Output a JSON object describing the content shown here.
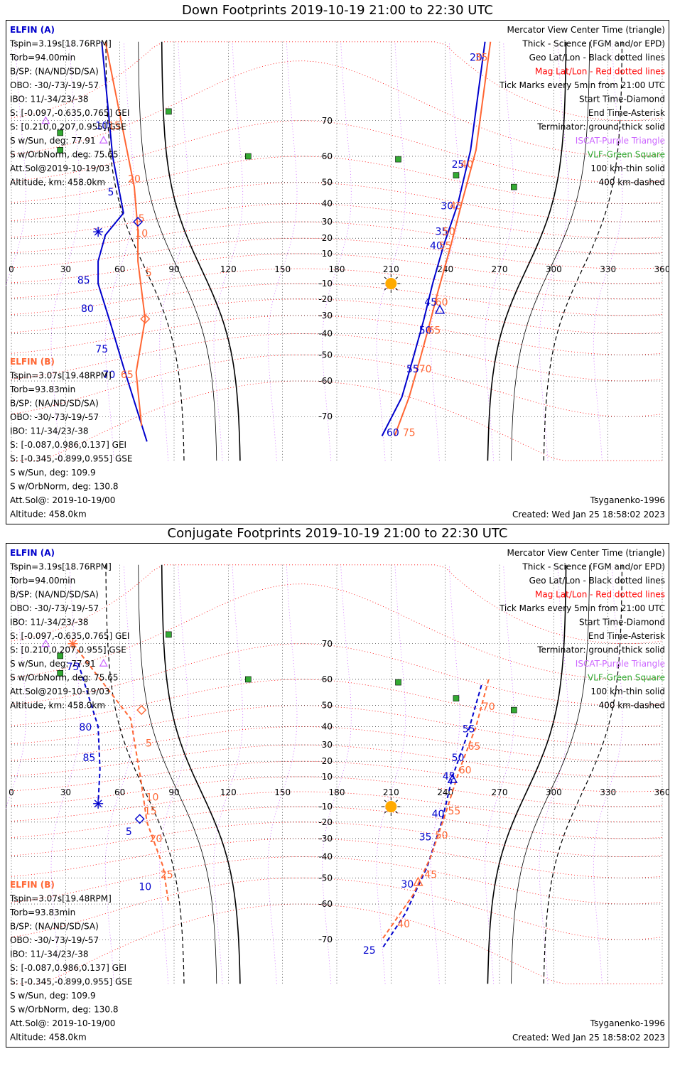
{
  "panels": [
    {
      "title": "Down Footprints 2019-10-19 21:00 to 22:30 UTC",
      "elfin_a": {
        "name": "ELFIN (A)",
        "lines": [
          "Tspin=3.19s[18.76RPM]",
          "Torb=94.00min",
          "B/SP: (NA/ND/SD/SA)",
          "OBO: -30/-73/-19/-57",
          "IBO: 11/-34/23/-38",
          "S: [-0.097,-0.635,0.765] GEI",
          "S: [0.210,0.207,0.955] GSE",
          "S w/Sun, deg: 77.91",
          "S w/OrbNorm, deg: 75.65",
          "Att.Sol@2019-10-19/03",
          "Altitude, km: 458.0km"
        ]
      },
      "elfin_b": {
        "name": "ELFIN (B)",
        "lines": [
          "Tspin=3.07s[19.48RPM]",
          "Torb=93.83min",
          "B/SP: (NA/ND/SD/SA)",
          "OBO: -30/-73/-19/-57",
          "IBO: 11/-34/23/-38",
          "S: [-0.087,0.986,0.137] GEI",
          "S: [-0.345,-0.899,0.955] GSE",
          "S w/Sun, deg: 109.9",
          "S w/OrbNorm, deg: 130.8",
          "Att.Sol@: 2019-10-19/00",
          "Altitude: 458.0km"
        ]
      },
      "created": "Created: Wed Jan 25 18:58:02 2023"
    },
    {
      "title": "Conjugate Footprints 2019-10-19 21:00 to 22:30 UTC",
      "elfin_a": {
        "name": "ELFIN (A)",
        "lines": [
          "Tspin=3.19s[18.76RPM]",
          "Torb=94.00min",
          "B/SP: (NA/ND/SD/SA)",
          "OBO: -30/-73/-19/-57",
          "IBO: 11/-34/23/-38",
          "S: [-0.097,-0.635,0.765] GEI",
          "S: [0.210,0.207,0.955] GSE",
          "S w/Sun, deg: 77.91",
          "S w/OrbNorm, deg: 75.65",
          "Att.Sol@2019-10-19/03",
          "Altitude, km: 458.0km"
        ]
      },
      "elfin_b": {
        "name": "ELFIN (B)",
        "lines": [
          "Tspin=3.07s[19.48RPM]",
          "Torb=93.83min",
          "B/SP: (NA/ND/SD/SA)",
          "OBO: -30/-73/-19/-57",
          "IBO: 11/-34/23/-38",
          "S: [-0.087,0.986,0.137] GEI",
          "S: [-0.345,-0.899,0.955] GSE",
          "S w/Sun, deg: 109.9",
          "S w/OrbNorm, deg: 130.8",
          "Att.Sol@: 2019-10-19/00",
          "Altitude: 458.0km"
        ]
      },
      "created": "Created: Wed Jan 25 18:58:02 2023"
    }
  ],
  "legend": [
    {
      "text": "Mercator View Center Time (triangle)",
      "color": "#000000"
    },
    {
      "text": "Thick - Science (FGM and/or EPD)",
      "color": "#000000"
    },
    {
      "text": "Geo Lat/Lon - Black dotted lines",
      "color": "#000000"
    },
    {
      "text": "Mag Lat/Lon - Red dotted lines",
      "color": "#ff0000"
    },
    {
      "text": "Tick Marks every 5min from 21:00 UTC",
      "color": "#000000"
    },
    {
      "text": "Start Time-Diamond",
      "color": "#000000"
    },
    {
      "text": "End Time-Asterisk",
      "color": "#000000"
    },
    {
      "text": "Terminator: ground-thick solid",
      "color": "#000000"
    },
    {
      "text": "ISCAT-Purple Triangle",
      "color": "#cc66ff"
    },
    {
      "text": "VLF-Green Square",
      "color": "#33aa33"
    },
    {
      "text": "100 km-thin solid",
      "color": "#000000"
    },
    {
      "text": "400 km-dashed",
      "color": "#000000"
    }
  ],
  "model": "Tsyganenko-1996",
  "colors": {
    "elfin_a": "#0000cc",
    "elfin_b": "#ff6633",
    "mag_grid": "#ff0000",
    "iscat": "#cc66ff",
    "vlf": "#33aa33",
    "sun": "#ffaa00"
  },
  "chart_data": [
    {
      "type": "scatter",
      "title": "Down Footprints 2019-10-19 21:00 to 22:30 UTC",
      "x_ticks": [
        0,
        30,
        60,
        90,
        120,
        150,
        180,
        210,
        240,
        270,
        300,
        330,
        360
      ],
      "y_ticks": [
        70,
        60,
        50,
        40,
        30,
        20,
        10,
        -10,
        -20,
        -30,
        -40,
        -50,
        -60,
        -70
      ],
      "xlim": [
        0,
        360
      ],
      "ylim": [
        -78,
        82
      ],
      "sun": [
        210,
        -10
      ],
      "vlf_stations": [
        [
          87,
          72
        ],
        [
          27,
          67
        ],
        [
          27,
          62
        ],
        [
          131,
          60
        ],
        [
          214,
          59
        ],
        [
          246,
          53
        ],
        [
          278,
          48
        ]
      ],
      "iscat": [
        [
          19,
          70
        ],
        [
          51,
          65
        ]
      ],
      "elfin_a": {
        "track_west": [
          [
            50,
            82
          ],
          [
            56,
            60
          ],
          [
            62,
            35
          ],
          [
            52,
            22
          ],
          [
            48,
            5
          ],
          [
            48,
            -10
          ],
          [
            55,
            -35
          ],
          [
            62,
            -55
          ],
          [
            75,
            -75
          ]
        ],
        "track_east": [
          [
            262,
            82
          ],
          [
            254,
            62
          ],
          [
            247,
            40
          ],
          [
            239,
            15
          ],
          [
            233,
            -10
          ],
          [
            228,
            -33
          ],
          [
            222,
            -52
          ],
          [
            216,
            -65
          ],
          [
            205,
            -74
          ]
        ],
        "ticks": [
          {
            "label": "10",
            "lon": 50,
            "lat": 68
          },
          {
            "label": "5",
            "lon": 55,
            "lat": 44
          },
          {
            "label": "85",
            "lon": 40,
            "lat": -10
          },
          {
            "label": "80",
            "lon": 42,
            "lat": -28
          },
          {
            "label": "75",
            "lon": 50,
            "lat": -49
          },
          {
            "label": "70",
            "lon": 54,
            "lat": -59
          },
          {
            "label": "20",
            "lon": 257,
            "lat": 80
          },
          {
            "label": "25",
            "lon": 247,
            "lat": 56
          },
          {
            "label": "30",
            "lon": 241,
            "lat": 37
          },
          {
            "label": "35",
            "lon": 238,
            "lat": 22
          },
          {
            "label": "40",
            "lon": 235,
            "lat": 13
          },
          {
            "label": "45",
            "lon": 232,
            "lat": -24
          },
          {
            "label": "50",
            "lon": 229,
            "lat": -40
          },
          {
            "label": "55",
            "lon": 222,
            "lat": -57
          },
          {
            "label": "60",
            "lon": 211,
            "lat": -74
          }
        ],
        "start": [
          70,
          30
        ],
        "end": [
          48,
          24
        ],
        "center": [
          237,
          -27
        ]
      },
      "elfin_b": {
        "track_west": [
          [
            52,
            82
          ],
          [
            68,
            48
          ],
          [
            70,
            25
          ],
          [
            70,
            5
          ],
          [
            74,
            -32
          ],
          [
            69,
            -57
          ],
          [
            72,
            -72
          ]
        ],
        "track_east": [
          [
            265,
            82
          ],
          [
            257,
            62
          ],
          [
            249,
            40
          ],
          [
            243,
            15
          ],
          [
            236,
            -15
          ],
          [
            231,
            -36
          ],
          [
            226,
            -52
          ],
          [
            220,
            -65
          ],
          [
            212,
            -74
          ]
        ],
        "ticks": [
          {
            "label": "15",
            "lon": 57,
            "lat": 68
          },
          {
            "label": "20",
            "lon": 68,
            "lat": 50
          },
          {
            "label": "5",
            "lon": 72,
            "lat": 30
          },
          {
            "label": "10",
            "lon": 72,
            "lat": 21
          },
          {
            "label": "5",
            "lon": 76,
            "lat": -5
          },
          {
            "label": "65",
            "lon": 64,
            "lat": -59
          },
          {
            "label": "35",
            "lon": 260,
            "lat": 80
          },
          {
            "label": "40",
            "lon": 252,
            "lat": 56
          },
          {
            "label": "45",
            "lon": 246,
            "lat": 37
          },
          {
            "label": "50",
            "lon": 242,
            "lat": 22
          },
          {
            "label": "55",
            "lon": 240,
            "lat": 13
          },
          {
            "label": "60",
            "lon": 238,
            "lat": -24
          },
          {
            "label": "65",
            "lon": 234,
            "lat": -40
          },
          {
            "label": "70",
            "lon": 229,
            "lat": -57
          },
          {
            "label": "75",
            "lon": 220,
            "lat": -74
          }
        ],
        "start": [
          74,
          -32
        ]
      }
    },
    {
      "type": "scatter",
      "title": "Conjugate Footprints 2019-10-19 21:00 to 22:30 UTC",
      "x_ticks": [
        0,
        30,
        60,
        90,
        120,
        150,
        180,
        210,
        240,
        270,
        300,
        330,
        360
      ],
      "y_ticks": [
        70,
        60,
        50,
        40,
        30,
        20,
        10,
        -10,
        -20,
        -30,
        -40,
        -50,
        -60,
        -70
      ],
      "xlim": [
        0,
        360
      ],
      "ylim": [
        -78,
        82
      ],
      "sun": [
        210,
        -10
      ],
      "vlf_stations": [
        [
          87,
          72
        ],
        [
          27,
          67
        ],
        [
          27,
          62
        ],
        [
          131,
          60
        ],
        [
          214,
          59
        ],
        [
          246,
          53
        ],
        [
          278,
          48
        ]
      ],
      "iscat": [
        [
          19,
          70
        ],
        [
          51,
          65
        ]
      ],
      "elfin_a": {
        "track_west": [
          [
            37,
            65
          ],
          [
            48,
            40
          ],
          [
            49,
            15
          ],
          [
            48,
            -8
          ]
        ],
        "track_east": [
          [
            260,
            58
          ],
          [
            252,
            35
          ],
          [
            244,
            10
          ],
          [
            238,
            -20
          ],
          [
            230,
            -45
          ],
          [
            218,
            -63
          ],
          [
            205,
            -72
          ]
        ],
        "ticks": [
          {
            "label": "75",
            "lon": 34,
            "lat": 63
          },
          {
            "label": "80",
            "lon": 41,
            "lat": 38
          },
          {
            "label": "85",
            "lon": 43,
            "lat": 20
          },
          {
            "label": "5",
            "lon": 65,
            "lat": -28
          },
          {
            "label": "10",
            "lon": 74,
            "lat": -55
          },
          {
            "label": "55",
            "lon": 253,
            "lat": 37
          },
          {
            "label": "50",
            "lon": 247,
            "lat": 20
          },
          {
            "label": "45",
            "lon": 242,
            "lat": 8
          },
          {
            "label": "40",
            "lon": 236,
            "lat": -17
          },
          {
            "label": "35",
            "lon": 229,
            "lat": -31
          },
          {
            "label": "30",
            "lon": 219,
            "lat": -54
          },
          {
            "label": "25",
            "lon": 198,
            "lat": -73
          }
        ],
        "start": [
          71,
          -18
        ],
        "end": [
          48,
          -8
        ],
        "center": [
          244,
          8
        ]
      },
      "elfin_b": {
        "track_west": [
          [
            34,
            70
          ],
          [
            66,
            44
          ],
          [
            72,
            5
          ],
          [
            75,
            -20
          ],
          [
            84,
            -45
          ],
          [
            87,
            -60
          ]
        ],
        "track_east": [
          [
            264,
            60
          ],
          [
            257,
            40
          ],
          [
            248,
            15
          ],
          [
            240,
            -15
          ],
          [
            232,
            -40
          ],
          [
            222,
            -57
          ],
          [
            205,
            -70
          ]
        ],
        "ticks": [
          {
            "label": "5",
            "lon": 76,
            "lat": 29
          },
          {
            "label": "10",
            "lon": 78,
            "lat": -6
          },
          {
            "label": "15",
            "lon": 77,
            "lat": -15
          },
          {
            "label": "20",
            "lon": 80,
            "lat": -32
          },
          {
            "label": "25",
            "lon": 86,
            "lat": -50
          },
          {
            "label": "70",
            "lon": 264,
            "lat": 48
          },
          {
            "label": "65",
            "lon": 256,
            "lat": 27
          },
          {
            "label": "60",
            "lon": 251,
            "lat": 12
          },
          {
            "label": "55",
            "lon": 245,
            "lat": -15
          },
          {
            "label": "50",
            "lon": 238,
            "lat": -30
          },
          {
            "label": "45",
            "lon": 232,
            "lat": -50
          },
          {
            "label": "40",
            "lon": 217,
            "lat": -67
          }
        ],
        "start": [
          72,
          48
        ],
        "center": [
          225,
          -52
        ],
        "end": [
          34,
          70
        ]
      }
    }
  ]
}
